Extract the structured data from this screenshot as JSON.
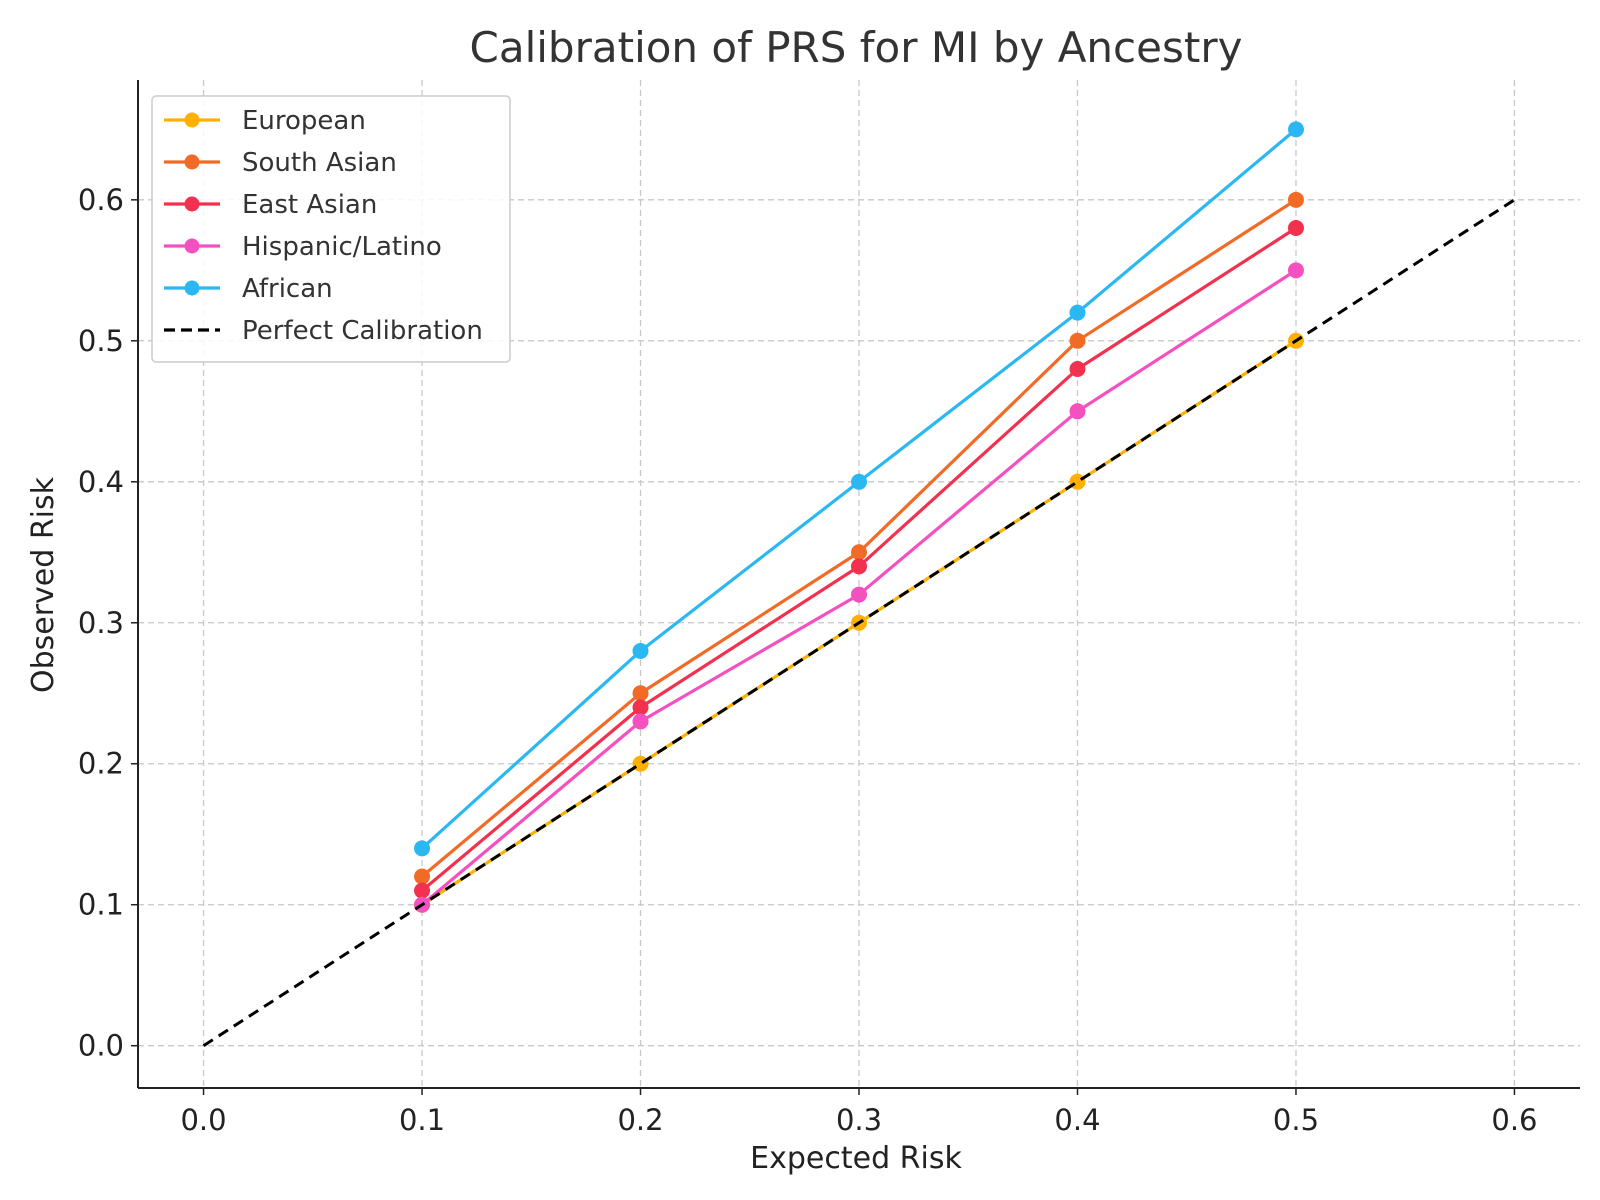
{
  "chart_data": {
    "type": "line",
    "title": "Calibration of PRS for MI by Ancestry",
    "xlabel": "Expected Risk",
    "ylabel": "Observed Risk",
    "xlim": [
      -0.03,
      0.63
    ],
    "ylim": [
      -0.03,
      0.685
    ],
    "xticks": [
      0.0,
      0.1,
      0.2,
      0.3,
      0.4,
      0.5,
      0.6
    ],
    "xtick_labels": [
      "0.0",
      "0.1",
      "0.2",
      "0.3",
      "0.4",
      "0.5",
      "0.6"
    ],
    "yticks": [
      0.0,
      0.1,
      0.2,
      0.3,
      0.4,
      0.5,
      0.6
    ],
    "ytick_labels": [
      "0.0",
      "0.1",
      "0.2",
      "0.3",
      "0.4",
      "0.5",
      "0.6"
    ],
    "grid": true,
    "legend_position": "top-left",
    "x": [
      0.1,
      0.2,
      0.3,
      0.4,
      0.5
    ],
    "series": [
      {
        "name": "European",
        "color": "#FFB000",
        "style": "solid-marker",
        "values": [
          0.1,
          0.2,
          0.3,
          0.4,
          0.5
        ]
      },
      {
        "name": "South Asian",
        "color": "#F26B26",
        "style": "solid-marker",
        "values": [
          0.12,
          0.25,
          0.35,
          0.5,
          0.6
        ]
      },
      {
        "name": "East Asian",
        "color": "#F2314F",
        "style": "solid-marker",
        "values": [
          0.11,
          0.24,
          0.34,
          0.48,
          0.58
        ]
      },
      {
        "name": "Hispanic/Latino",
        "color": "#F550C0",
        "style": "solid-marker",
        "values": [
          0.1,
          0.23,
          0.32,
          0.45,
          0.55
        ]
      },
      {
        "name": "African",
        "color": "#2BB8F2",
        "style": "solid-marker",
        "values": [
          0.14,
          0.28,
          0.4,
          0.52,
          0.65
        ]
      }
    ],
    "reference_line": {
      "name": "Perfect Calibration",
      "color": "#000000",
      "style": "dashed",
      "x": [
        0.0,
        0.6
      ],
      "y": [
        0.0,
        0.6
      ]
    }
  }
}
